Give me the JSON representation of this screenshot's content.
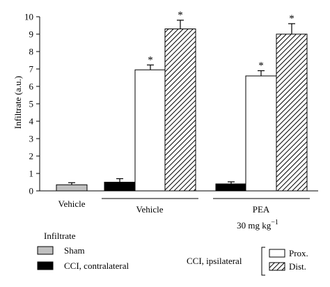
{
  "chart_data": {
    "type": "bar",
    "ylabel": "Infiltrate (a.u.)",
    "ylim": [
      0,
      10
    ],
    "yticks": [
      "0",
      "1",
      "2",
      "3",
      "4",
      "5",
      "6",
      "7",
      "8",
      "9",
      "10"
    ],
    "groups": [
      {
        "label": "Vehicle",
        "sublabel": ""
      },
      {
        "label": "Vehicle",
        "sublabel": ""
      },
      {
        "label": "PEA",
        "sublabel": "30 mg kg",
        "sublabel_sup": "−1"
      }
    ],
    "bars": [
      {
        "group": 0,
        "series": "sham",
        "value": 0.35,
        "error": 0.12,
        "star": false
      },
      {
        "group": 1,
        "series": "contra",
        "value": 0.5,
        "error": 0.2,
        "star": false
      },
      {
        "group": 1,
        "series": "prox",
        "value": 6.95,
        "error": 0.28,
        "star": true
      },
      {
        "group": 1,
        "series": "dist",
        "value": 9.3,
        "error": 0.5,
        "star": true
      },
      {
        "group": 2,
        "series": "contra",
        "value": 0.4,
        "error": 0.12,
        "star": false
      },
      {
        "group": 2,
        "series": "prox",
        "value": 6.6,
        "error": 0.3,
        "star": true
      },
      {
        "group": 2,
        "series": "dist",
        "value": 9.0,
        "error": 0.6,
        "star": true
      }
    ],
    "star_symbol": "*",
    "series": [
      {
        "key": "sham",
        "name": "Sham",
        "fill": "#c0c0c0",
        "pattern": "solid"
      },
      {
        "key": "contra",
        "name": "CCI, contralateral",
        "fill": "#000000",
        "pattern": "solid"
      },
      {
        "key": "prox",
        "name": "Prox.",
        "fill": "#ffffff",
        "pattern": "solid"
      },
      {
        "key": "dist",
        "name": "Dist.",
        "fill": "#ffffff",
        "pattern": "hatched"
      }
    ],
    "legend": {
      "title": "Infiltrate",
      "bracket_label": "CCI, ipsilateral",
      "placement": "bottom"
    }
  }
}
